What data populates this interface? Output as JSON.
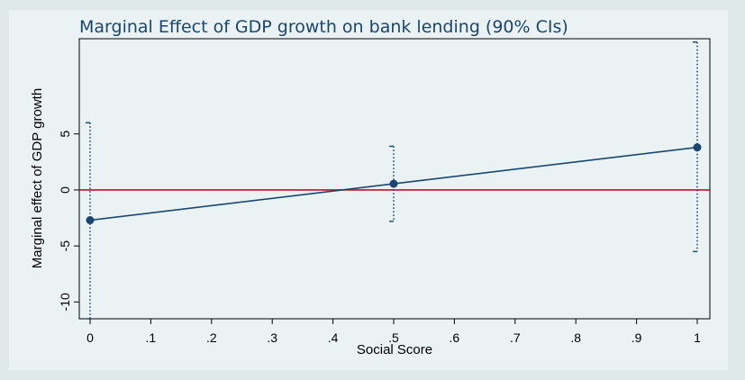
{
  "chart_data": {
    "type": "line",
    "title": "Marginal Effect of GDP growth on bank lending (90% CIs)",
    "xlabel": "Social Score",
    "ylabel": "Marginal effect of GDP growth",
    "xlim": [
      0,
      1
    ],
    "ylim": [
      -11.5,
      13.5
    ],
    "x_ticks": [
      0,
      0.1,
      0.2,
      0.3,
      0.4,
      0.5,
      0.6,
      0.7,
      0.8,
      0.9,
      1
    ],
    "x_tick_labels": [
      "0",
      ".1",
      ".2",
      ".3",
      ".4",
      ".5",
      ".6",
      ".7",
      ".8",
      ".9",
      "1"
    ],
    "y_ticks": [
      -10,
      -5,
      0,
      5
    ],
    "y_tick_labels": [
      "-10",
      "-5",
      "0",
      "5"
    ],
    "reference_line": {
      "y": 0,
      "color": "#b8172f"
    },
    "grid": false,
    "series": [
      {
        "name": "Marginal effect",
        "x": [
          0,
          0.5,
          1
        ],
        "y": [
          -2.7,
          0.55,
          3.8
        ],
        "ci_lower": [
          -11.5,
          -2.8,
          -5.5
        ],
        "ci_upper": [
          6.0,
          3.9,
          13.2
        ],
        "color": "#1a476f"
      }
    ]
  }
}
